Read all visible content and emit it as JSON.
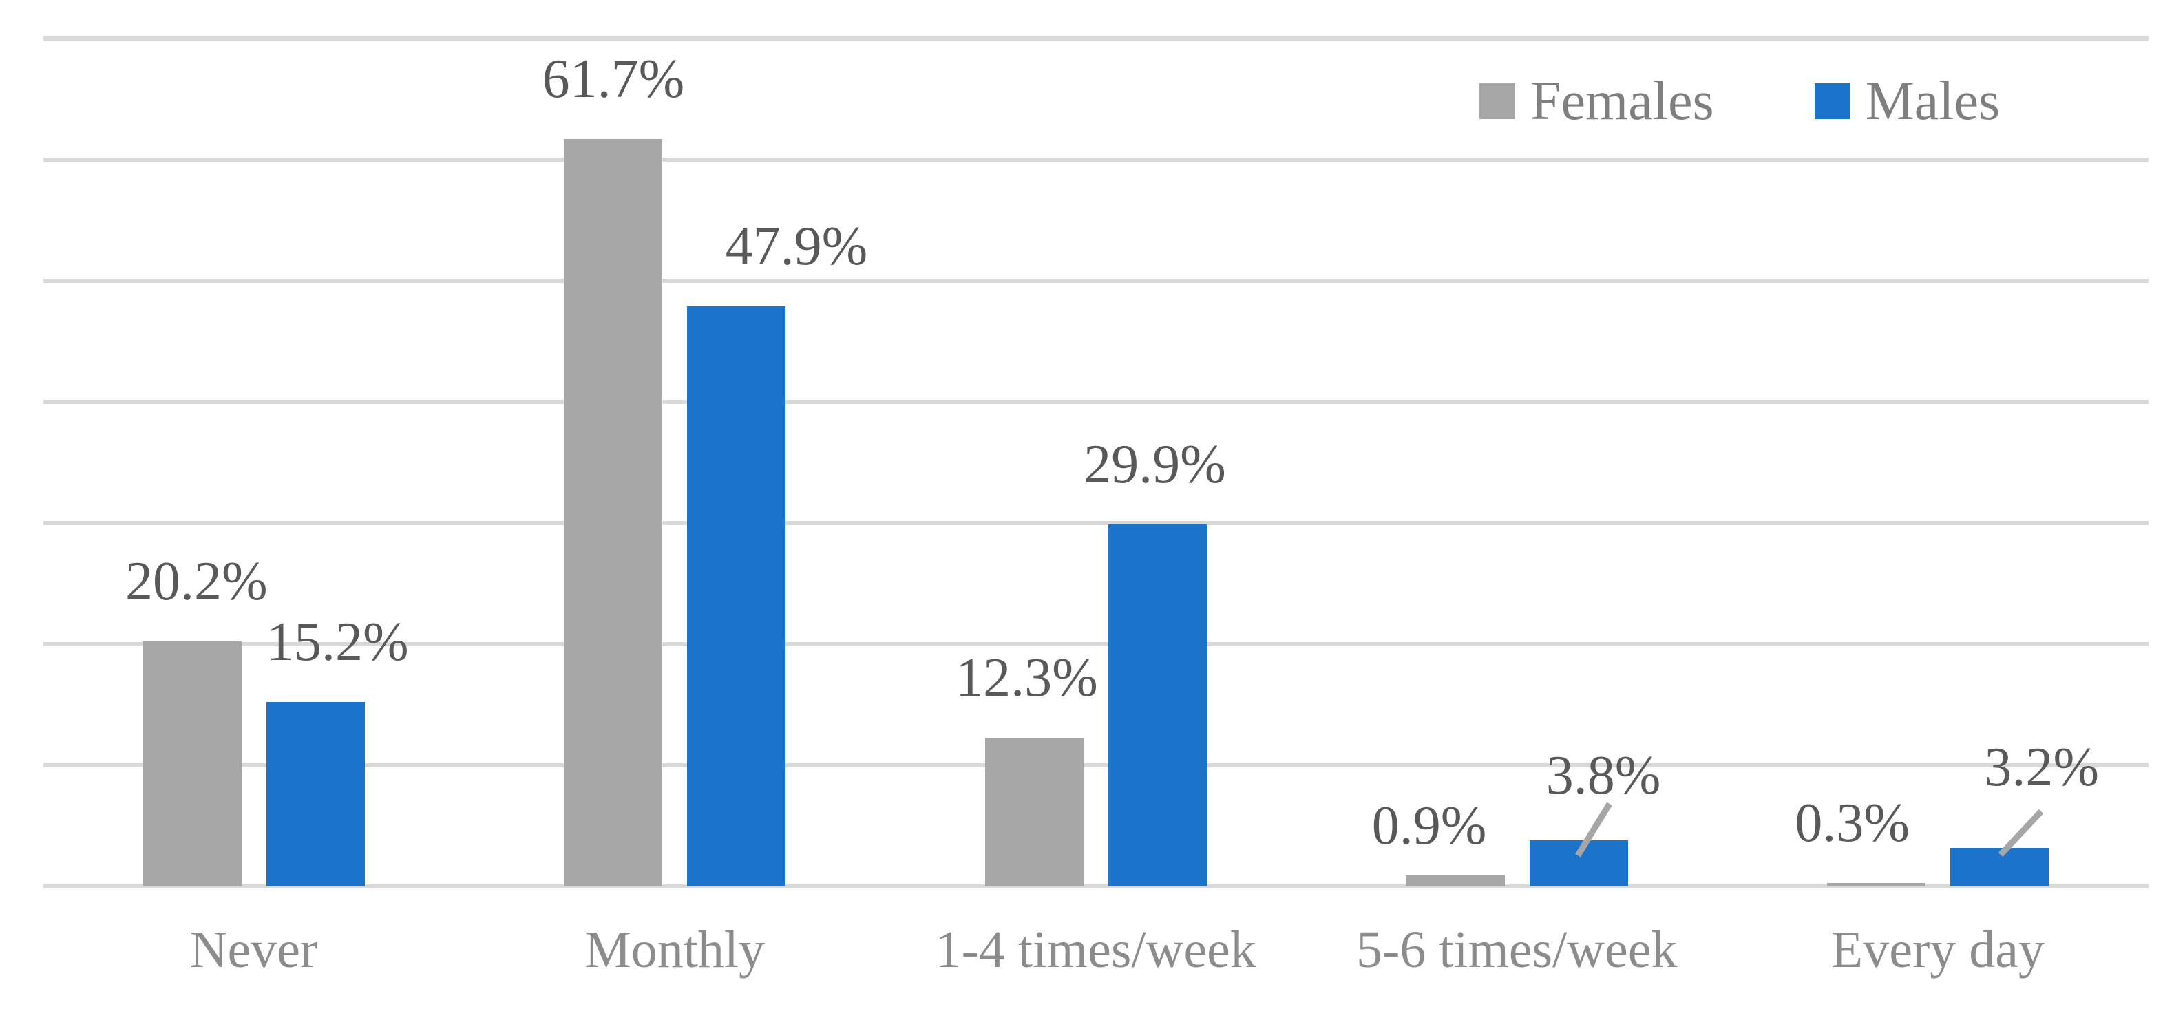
{
  "figure": {
    "background": "#FFFFFF"
  },
  "chart_data": {
    "type": "bar",
    "categories": [
      "Never",
      "Monthly",
      "1-4 times/week",
      "5-6 times/week",
      "Every day"
    ],
    "series": [
      {
        "name": "Females",
        "color": "#A7A7A7",
        "values": [
          20.2,
          61.7,
          12.3,
          0.9,
          0.3
        ],
        "labels": [
          "20.2%",
          "61.7%",
          "12.3%",
          "0.9%",
          "0.3%"
        ],
        "callouts": [
          false,
          false,
          false,
          false,
          false
        ]
      },
      {
        "name": "Males",
        "color": "#1B74C9",
        "values": [
          15.2,
          47.9,
          29.9,
          3.8,
          3.2
        ],
        "labels": [
          "15.2%",
          "47.9%",
          "29.9%",
          "3.8%",
          "3.2%"
        ],
        "callouts": [
          false,
          false,
          false,
          true,
          true
        ]
      }
    ],
    "title": "",
    "xlabel": "",
    "ylabel": "",
    "ylim": [
      0,
      70
    ],
    "gridline_step": 10,
    "grid_on": true,
    "y_axis_labels_visible": false,
    "legend_position": "top-right",
    "grid_color": "#D9D9D9",
    "data_label_color": "#595959",
    "axis_text_color": "#8C8C8C",
    "legend_text_color": "#7F7F7F",
    "leader_line_color": "#A6A6A6"
  }
}
